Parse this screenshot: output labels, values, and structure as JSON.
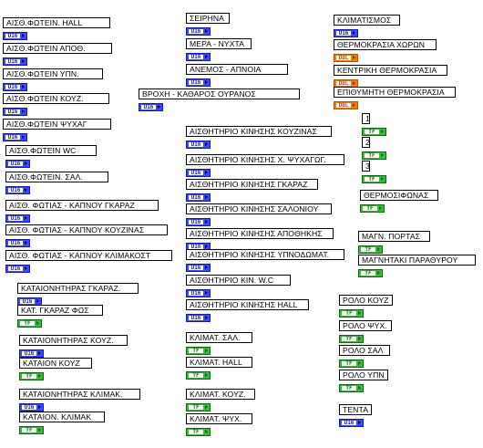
{
  "terminals": [
    {
      "id": "c1-01",
      "label": "ΑΙΣΘ.ΦΩΤΕΙΝ. HALL",
      "type": "u16"
    },
    {
      "id": "c1-02",
      "label": "ΑΙΣΘ.ΦΩΤΕΙΝ ΑΠΟΘ.",
      "type": "u16"
    },
    {
      "id": "c1-03",
      "label": "ΑΙΣΘ.ΦΩΤΕΙΝ ΥΠΝ.",
      "type": "u16"
    },
    {
      "id": "c1-04",
      "label": "ΑΙΣΘ.ΦΩΤΕΙΝ ΚΟΥΖ.",
      "type": "u16"
    },
    {
      "id": "c1-05",
      "label": "ΑΙΣΘ.ΦΩΤΕΙΝ ΨΥΧΑΓ",
      "type": "u16"
    },
    {
      "id": "c1-06",
      "label": "ΑΙΣΘ.ΦΩΤΕΙΝ WC",
      "type": "u16"
    },
    {
      "id": "c1-07",
      "label": "ΑΙΣΘ.ΦΩΤΕΙΝ. ΣΑΛ.",
      "type": "u16"
    },
    {
      "id": "c1-08",
      "label": "ΑΙΣΘ. ΦΩΤΙΑΣ - ΚΑΠΝΟΥ ΓΚΑΡΑΖ",
      "type": "u16"
    },
    {
      "id": "c1-09",
      "label": "ΑΙΣΘ. ΦΩΤΙΑΣ - ΚΑΠΝΟΥ ΚΟΥΖΙΝΑΣ",
      "type": "u16"
    },
    {
      "id": "c1-10",
      "label": "ΑΙΣΘ. ΦΩΤΙΑΣ - ΚΑΠΝΟΥ ΚΛΙΜΑΚΟΣΤ",
      "type": "u16"
    },
    {
      "id": "c1-11",
      "label": "ΚΑΤΑΙΟΝΗΤΗΡΑΣ ΓΚΑΡΑΖ.",
      "type": "u16"
    },
    {
      "id": "c1-12",
      "label": "ΚΑΤ. ΓΚΑΡΑΖ ΦΩΣ",
      "type": "tf"
    },
    {
      "id": "c1-13",
      "label": "ΚΑΤΑΙΟΝΗΤΗΡΑΣ ΚΟΥΖ.",
      "type": "u16"
    },
    {
      "id": "c1-14",
      "label": "ΚΑΤΑΙΟΝ ΚΟΥΖ",
      "type": "tf"
    },
    {
      "id": "c1-15",
      "label": "ΚΑΤΑΙΟΝΗΤΗΡΑΣ ΚΛΙΜΑΚ.",
      "type": "u16"
    },
    {
      "id": "c1-16",
      "label": "ΚΑΤΑΙΟΝ. ΚΛΙΜΑΚ",
      "type": "tf"
    },
    {
      "id": "c2-01",
      "label": "ΣΕΙΡΗΝΑ",
      "type": "u16"
    },
    {
      "id": "c2-02",
      "label": "ΜΕΡΑ - ΝΥΧΤΑ",
      "type": "u16"
    },
    {
      "id": "c2-03",
      "label": "ΑΝΕΜΟΣ - ΑΠΝΟΙΑ",
      "type": "u16"
    },
    {
      "id": "c2-04",
      "label": "ΒΡΟΧΗ - ΚΑΘΑΡΟΣ ΟΥΡΑΝΟΣ",
      "type": "u16"
    },
    {
      "id": "c2-05",
      "label": "ΑΙΣΘΗΤΗΡΙΟ ΚΙΝΗΣΗΣ ΚΟΥΖΙΝΑΣ",
      "type": "u16"
    },
    {
      "id": "c2-06",
      "label": "ΑΙΣΘΗΤΗΡΙΟ ΚΙΝΗΣΗΣ Χ. ΨΥΧΑΓΩΓ.",
      "type": "u16"
    },
    {
      "id": "c2-07",
      "label": "ΑΙΣΘΗΤΗΡΙΟ ΚΙΝΗΣΗΣ ΓΚΑΡΑΖ",
      "type": "u16"
    },
    {
      "id": "c2-08",
      "label": "ΑΙΣΘΗΤΗΡΙΟ ΚΙΝΗΣΗΣ ΣΑΛΟΝΙΟΥ",
      "type": "u16"
    },
    {
      "id": "c2-09",
      "label": "ΑΙΣΘΗΤΗΡΙΟ ΚΙΝΗΣΗΣ ΑΠΟΘΗΚΗΣ",
      "type": "u16"
    },
    {
      "id": "c2-10",
      "label": "ΑΙΣΘΗΤΗΡΙΟ ΚΙΝΗΣΗΣ ΥΠΝΟΔΩΜΑΤ.",
      "type": "u16"
    },
    {
      "id": "c2-11",
      "label": "ΑΙΣΘΗΤΗΡΙΟ ΚΙΝ. W.C",
      "type": "u16"
    },
    {
      "id": "c2-12",
      "label": "ΑΙΣΘΗΤΗΡΙΟ ΚΙΝΗΣΗΣ HALL",
      "type": "u16"
    },
    {
      "id": "c2-13",
      "label": "ΚΛΙΜΑΤ. ΣΑΛ.",
      "type": "tf"
    },
    {
      "id": "c2-14",
      "label": "ΚΛΙΜΑΤ. HALL",
      "type": "tf"
    },
    {
      "id": "c2-15",
      "label": "ΚΛΙΜΑΤ. ΚΟΥΖ.",
      "type": "tf"
    },
    {
      "id": "c2-16",
      "label": "ΚΛΙΜΑΤ. ΨΥΧ.",
      "type": "tf"
    },
    {
      "id": "c3-01",
      "label": "ΚΛΙΜΑΤΙΣΜΟΣ",
      "type": "u16"
    },
    {
      "id": "c3-02",
      "label": "ΘΕΡΜΟΚΡΑΣΙΑ ΧΩΡΩΝ",
      "type": "dbl"
    },
    {
      "id": "c3-03",
      "label": "ΚΕΝΤΡΙΚΗ ΘΕΡΜΟΚΡΑΣΙΑ",
      "type": "dbl"
    },
    {
      "id": "c3-04",
      "label": "ΕΠΙΘΥΜΗΤΗ ΘΕΡΜΟΚΡΑΣΙΑ",
      "type": "dbl"
    },
    {
      "id": "c3-05",
      "label": "1",
      "type": "tf"
    },
    {
      "id": "c3-06",
      "label": "2",
      "type": "tf"
    },
    {
      "id": "c3-07",
      "label": "3",
      "type": "tf"
    },
    {
      "id": "c3-08",
      "label": "ΘΕΡΜΟΣΙΦΩΝΑΣ",
      "type": "tf"
    },
    {
      "id": "c3-09",
      "label": "ΜΑΓΝ. ΠΟΡΤΑΣ",
      "type": "tf"
    },
    {
      "id": "c3-10",
      "label": "ΜΑΓΝΗΤΑΚΙ ΠΑΡΑΘΥΡΟΥ",
      "type": "tf"
    },
    {
      "id": "c3-11",
      "label": "ΡΟΛΟ ΚΟΥΖ",
      "type": "tf"
    },
    {
      "id": "c3-12",
      "label": "ΡΟΛΟ ΨΥΧ.",
      "type": "tf"
    },
    {
      "id": "c3-13",
      "label": "ΡΟΛΟ ΣΑΛ",
      "type": "tf"
    },
    {
      "id": "c3-14",
      "label": "ΡΟΛΟ ΥΠΝ",
      "type": "tf"
    },
    {
      "id": "c3-15",
      "label": "ΤΕΝΤΑ",
      "type": "u16"
    }
  ],
  "type_text": {
    "u16": "U16",
    "tf": "TF",
    "dbl": "DBL"
  },
  "colors": {
    "u16": "#3a48ff",
    "tf": "#3eb53e",
    "dbl": "#f07d00"
  }
}
